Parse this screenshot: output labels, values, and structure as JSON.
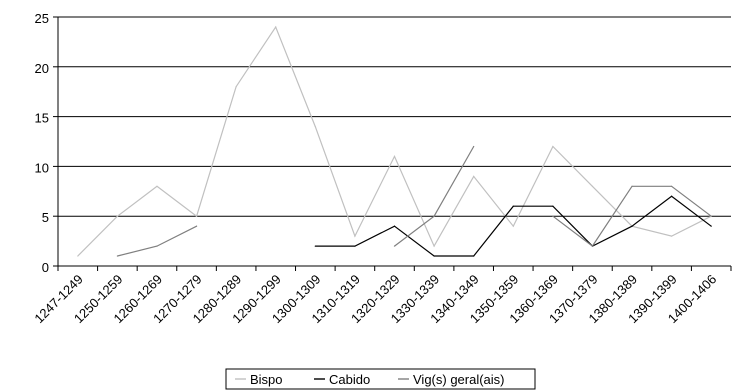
{
  "chart_data": {
    "type": "line",
    "categories": [
      "1247-1249",
      "1250-1259",
      "1260-1269",
      "1270-1279",
      "1280-1289",
      "1290-1299",
      "1300-1309",
      "1310-1319",
      "1320-1329",
      "1330-1339",
      "1340-1349",
      "1350-1359",
      "1360-1369",
      "1370-1379",
      "1380-1389",
      "1390-1399",
      "1400-1406"
    ],
    "series": [
      {
        "name": "Bispo",
        "color": "#c0c0c0",
        "values": [
          1,
          5,
          8,
          5,
          18,
          24,
          14,
          3,
          11,
          2,
          9,
          4,
          12,
          8,
          4,
          3,
          5
        ]
      },
      {
        "name": "Cabido",
        "color": "#000000",
        "values": [
          null,
          null,
          null,
          null,
          null,
          null,
          2,
          2,
          4,
          1,
          1,
          6,
          6,
          2,
          4,
          7,
          4
        ]
      },
      {
        "name": "Vig(s) geral(ais)",
        "color": "#7f7f7f",
        "values": [
          null,
          1,
          2,
          4,
          null,
          null,
          null,
          null,
          2,
          5,
          12,
          null,
          5,
          2,
          8,
          8,
          5
        ]
      }
    ],
    "yticks": [
      0,
      5,
      10,
      15,
      20,
      25
    ],
    "ylim": [
      0,
      25
    ],
    "grid": true,
    "legend_position": "bottom"
  }
}
